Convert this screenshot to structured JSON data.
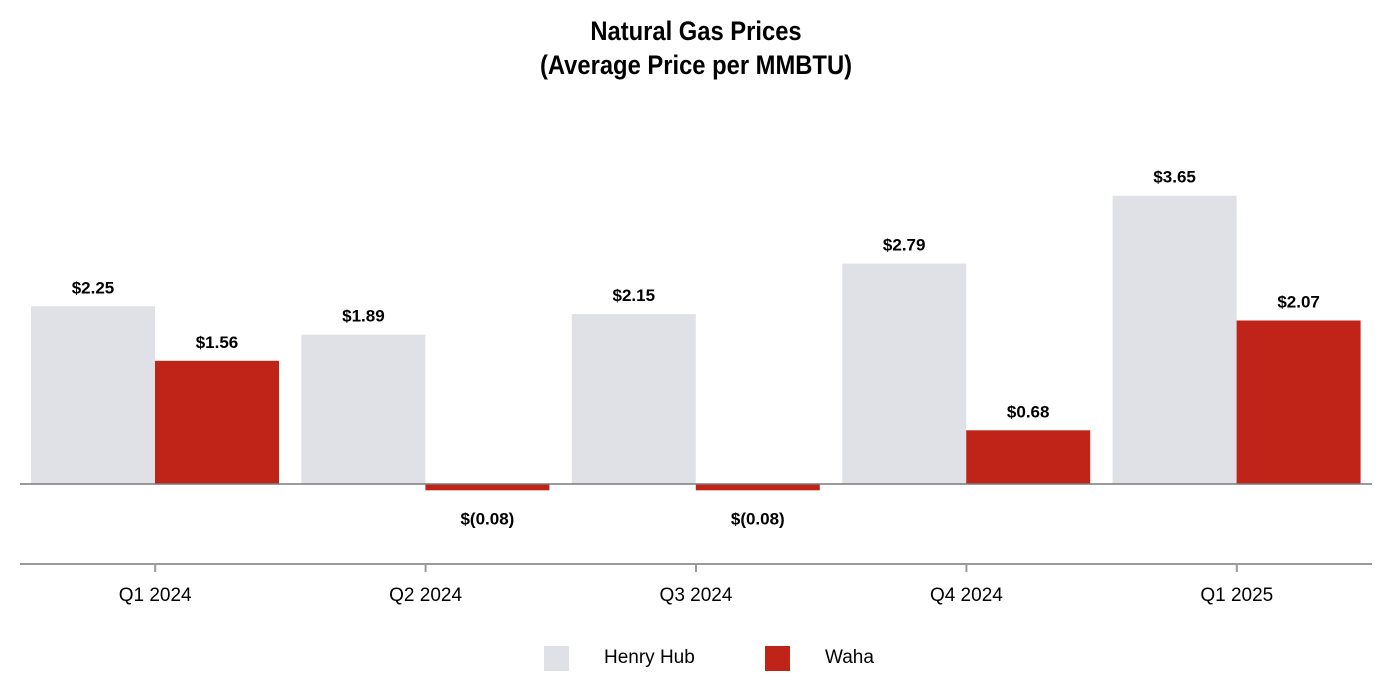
{
  "chart_data": {
    "type": "bar",
    "title": "Natural Gas Prices",
    "subtitle": "(Average Price per MMBTU)",
    "categories": [
      "Q1 2024",
      "Q2 2024",
      "Q3 2024",
      "Q4 2024",
      "Q1 2025"
    ],
    "series": [
      {
        "name": "Henry Hub",
        "color": "#e0e1e6",
        "values": [
          2.25,
          1.89,
          2.15,
          2.79,
          3.65
        ],
        "labels": [
          "$2.25",
          "$1.89",
          "$2.15",
          "$2.79",
          "$3.65"
        ]
      },
      {
        "name": "Waha",
        "color": "#c02317",
        "values": [
          1.56,
          -0.08,
          -0.08,
          0.68,
          2.07
        ],
        "labels": [
          "$1.56",
          "$(0.08)",
          "$(0.08)",
          "$0.68",
          "$2.07"
        ]
      }
    ],
    "xlabel": "",
    "ylabel": "",
    "legend_position": "bottom-center",
    "grid": false
  }
}
